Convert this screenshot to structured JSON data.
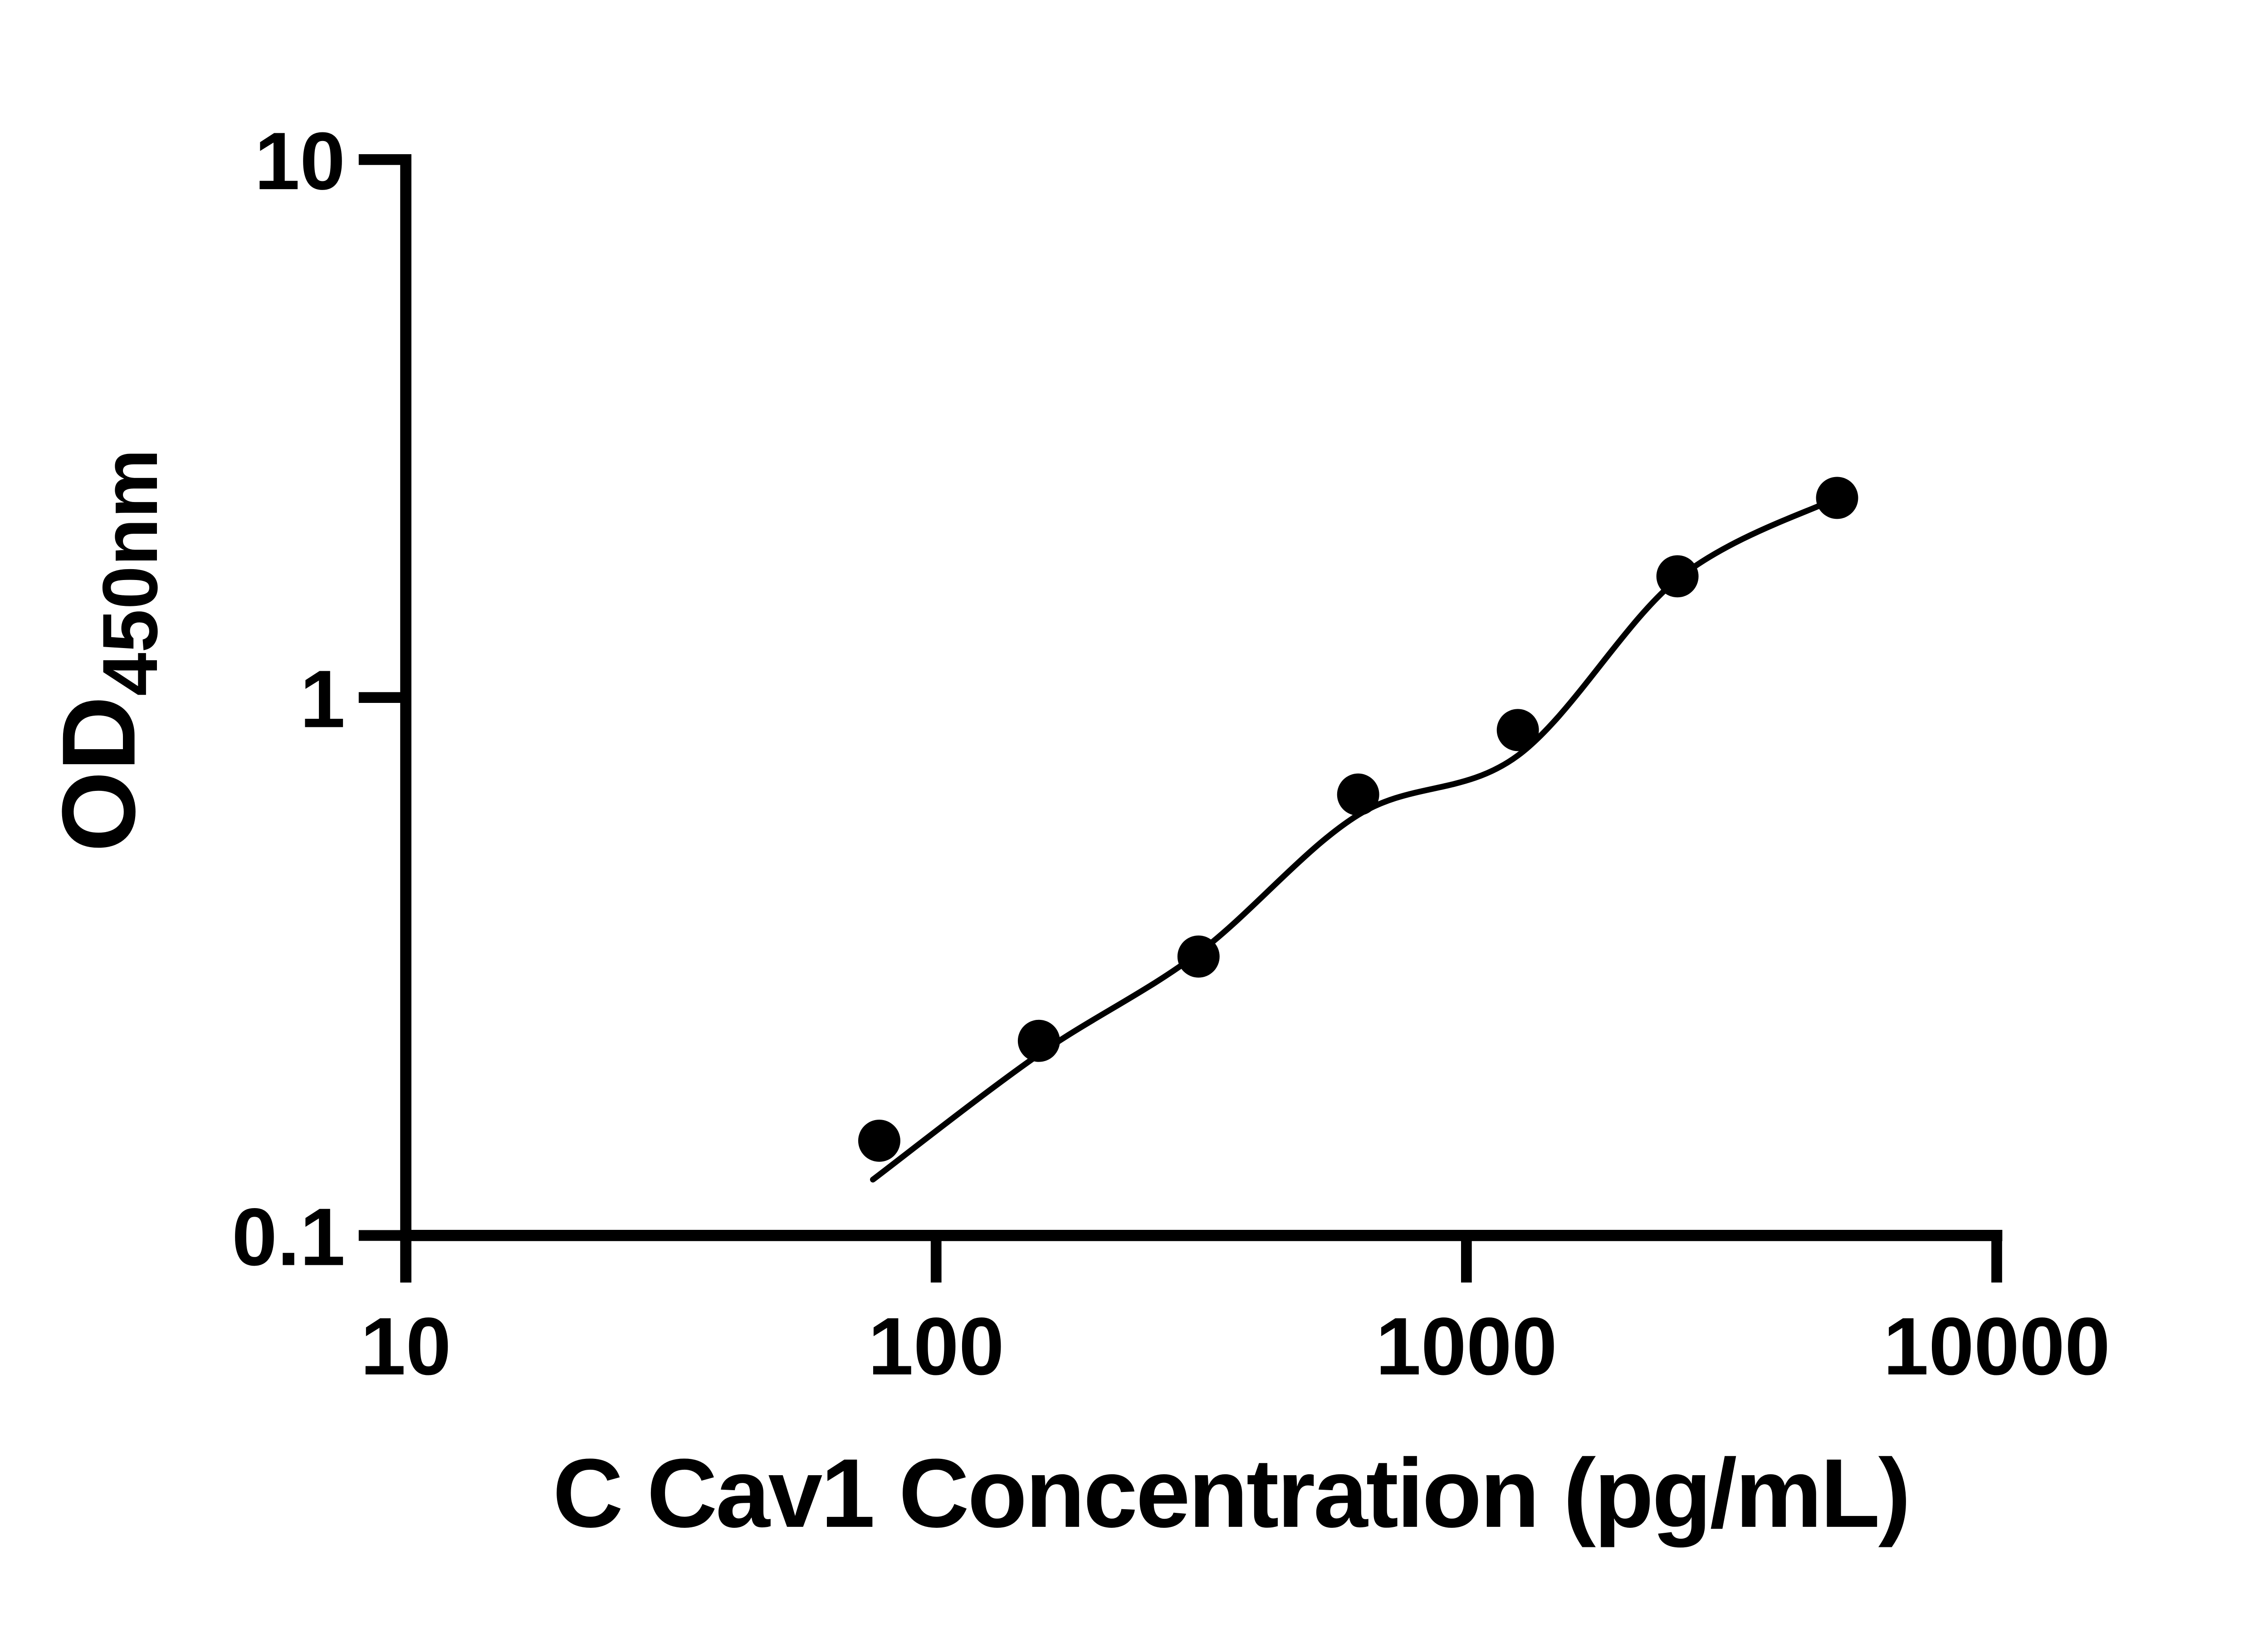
{
  "page": {
    "background": "#ffffff",
    "ink": "#000000"
  },
  "chart_data": {
    "type": "scatter",
    "title": "",
    "xlabel": "C Cav1 Concentration (pg/mL)",
    "ylabel_main": "OD",
    "ylabel_sub": "450nm",
    "x_scale": "log10",
    "y_scale": "log10",
    "xlim": [
      10,
      10000
    ],
    "ylim": [
      0.1,
      10
    ],
    "grid": false,
    "legend": false,
    "x_ticks": [
      {
        "value": 10,
        "label": "10"
      },
      {
        "value": 100,
        "label": "100"
      },
      {
        "value": 1000,
        "label": "1000"
      },
      {
        "value": 10000,
        "label": "10000"
      }
    ],
    "y_ticks": [
      {
        "value": 0.1,
        "label": "0.1"
      },
      {
        "value": 1,
        "label": "1"
      },
      {
        "value": 10,
        "label": "10"
      }
    ],
    "series": [
      {
        "name": "C Cav1 standard points",
        "marker": "filled-circle",
        "color": "#000000",
        "points": [
          {
            "x": 78.125,
            "y": 0.15
          },
          {
            "x": 156.25,
            "y": 0.23
          },
          {
            "x": 312.5,
            "y": 0.33
          },
          {
            "x": 625,
            "y": 0.66
          },
          {
            "x": 1250,
            "y": 0.87
          },
          {
            "x": 2500,
            "y": 1.68
          },
          {
            "x": 5000,
            "y": 2.35
          }
        ]
      }
    ],
    "fit_curve": {
      "name": "fitted standard curve",
      "color": "#000000",
      "points": [
        {
          "x": 76,
          "y": 0.127
        },
        {
          "x": 156.25,
          "y": 0.217
        },
        {
          "x": 312.5,
          "y": 0.335
        },
        {
          "x": 625,
          "y": 0.605
        },
        {
          "x": 1250,
          "y": 0.78
        },
        {
          "x": 2500,
          "y": 1.66
        },
        {
          "x": 5000,
          "y": 2.35
        }
      ]
    }
  }
}
